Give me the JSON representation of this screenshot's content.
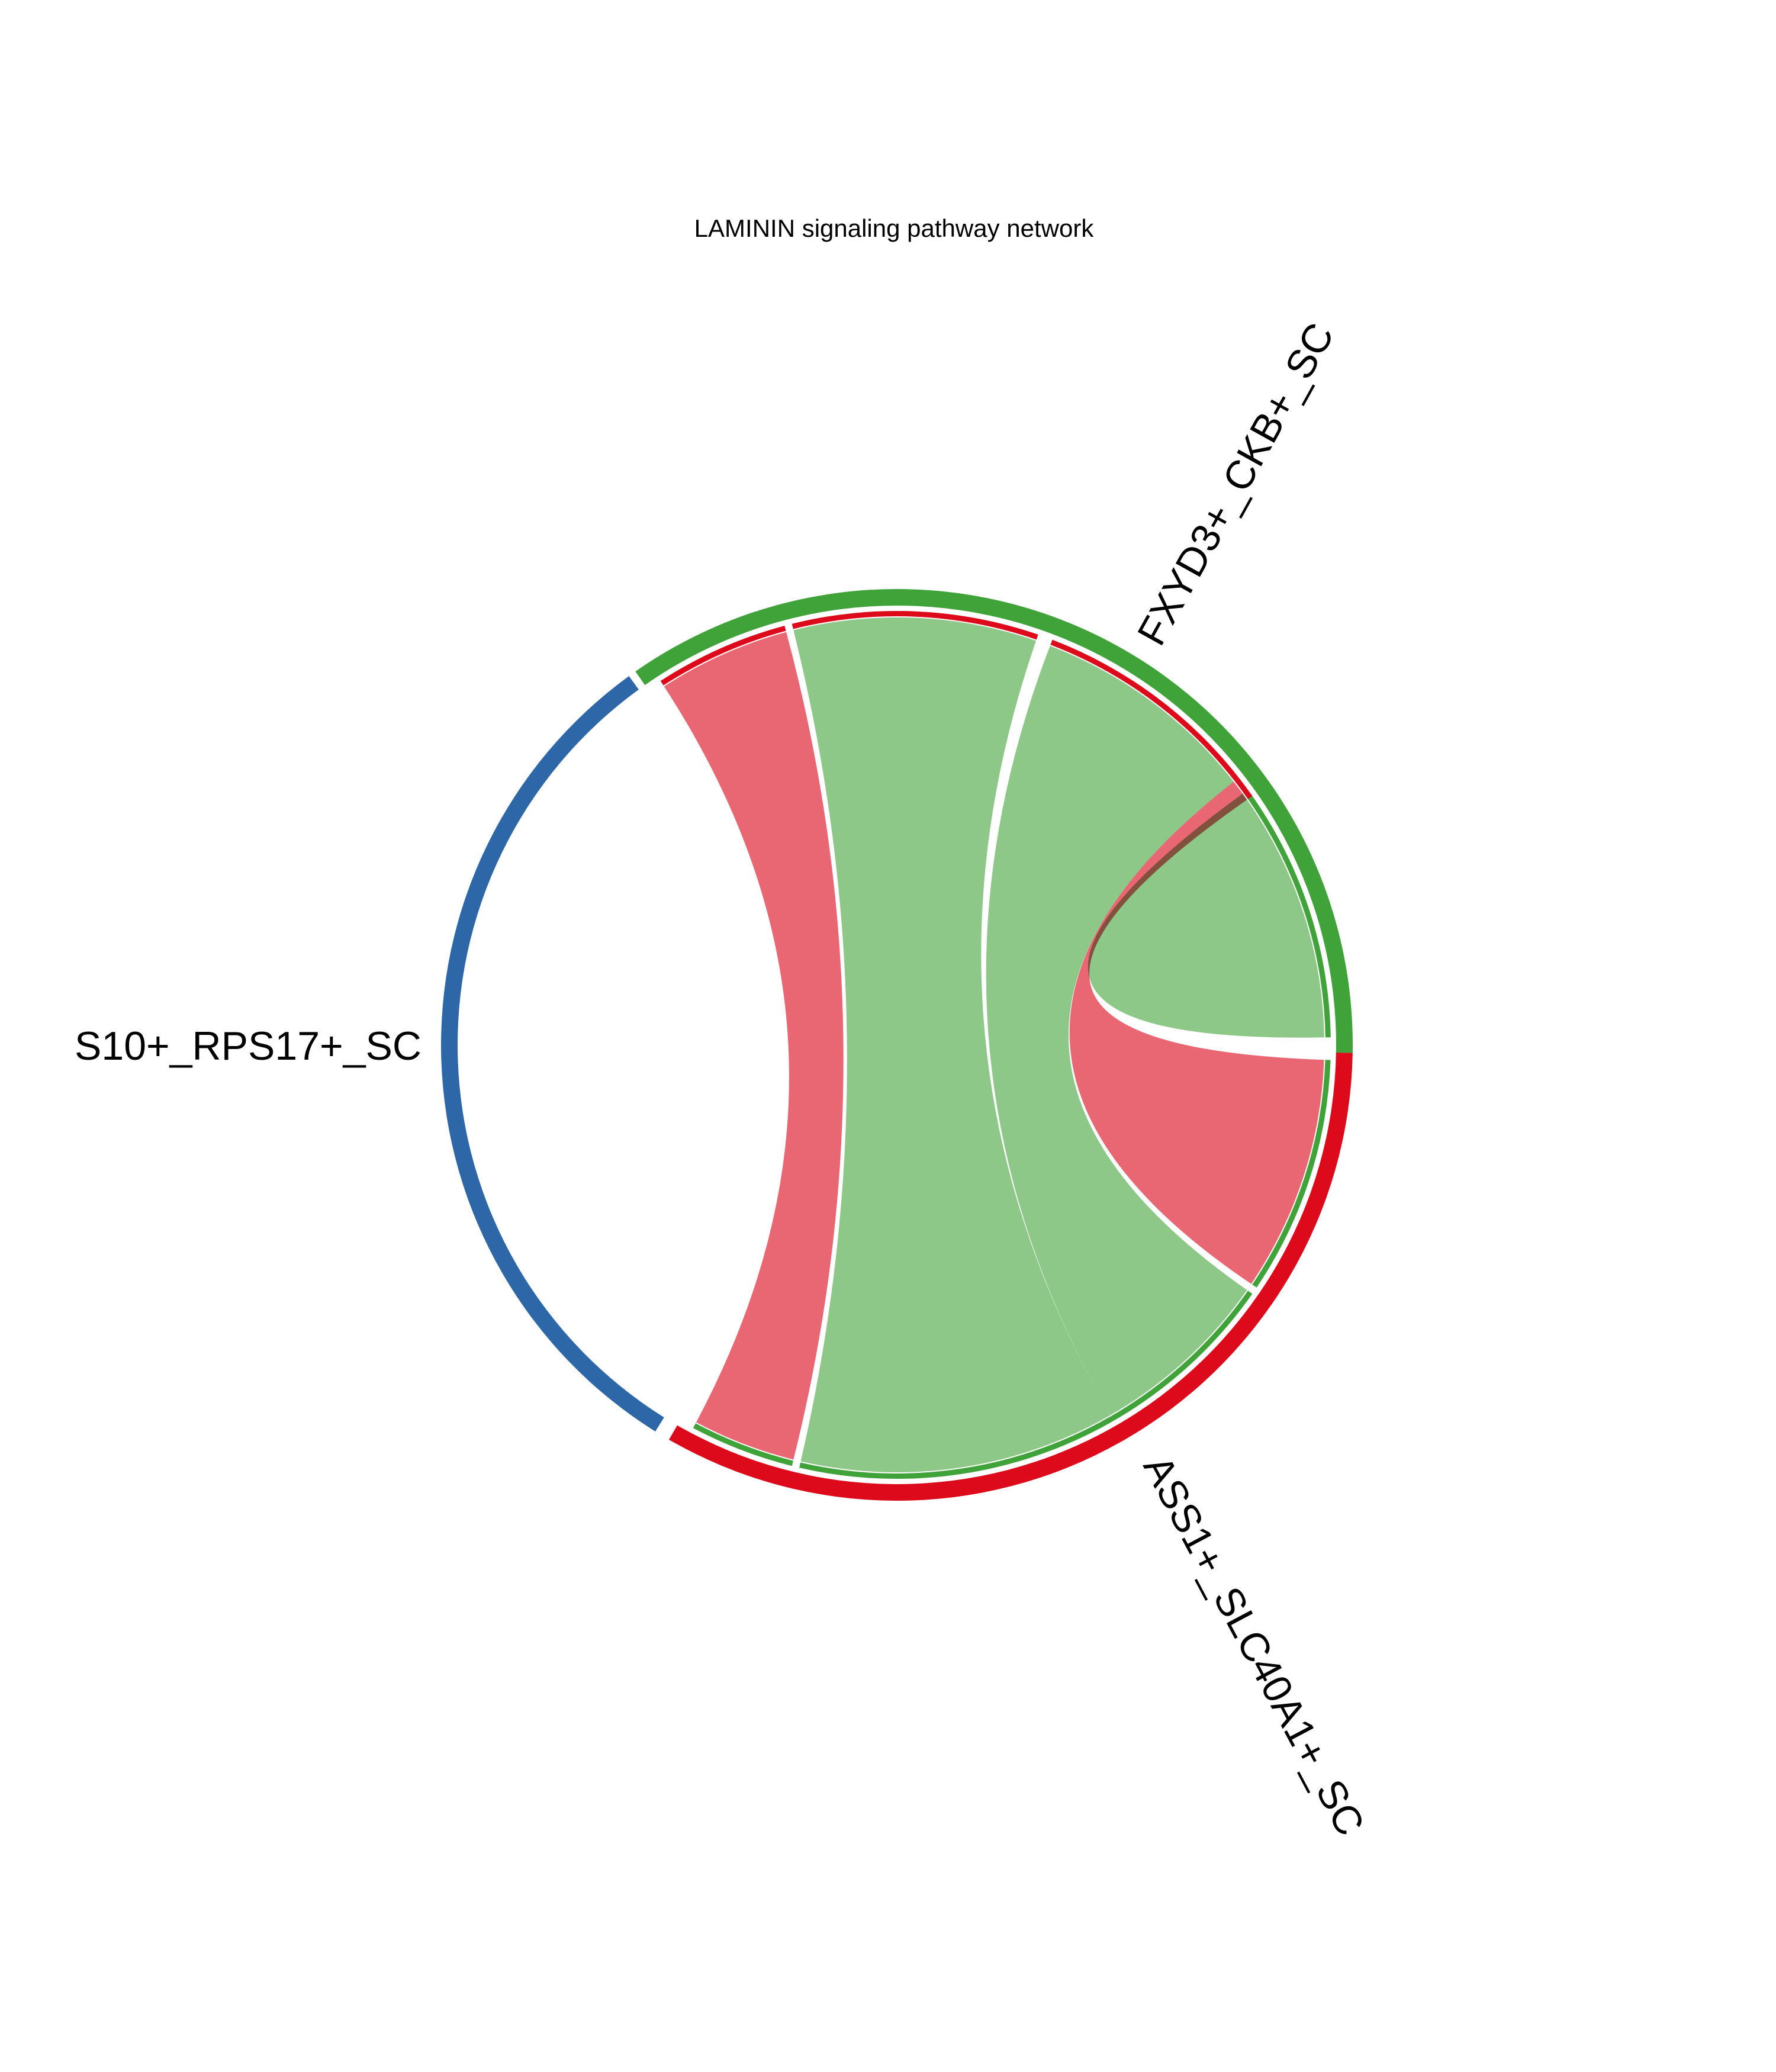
{
  "chart_data": {
    "type": "chord",
    "title": "LAMININ signaling pathway network",
    "nodes": [
      {
        "name": "S10+_RPS17+_SC",
        "color": "#2E67A8",
        "sector_degrees": [
          126,
          238
        ]
      },
      {
        "name": "FXYD3+_CKB+_SC",
        "color": "#3FA33A",
        "sector_degrees": [
          -1,
          125
        ]
      },
      {
        "name": "ASS1+_SLC40A1+_SC",
        "color": "#DC0A1A",
        "sector_degrees": [
          240,
          359
        ]
      }
    ],
    "links": [
      {
        "source": "FXYD3+_CKB+_SC",
        "target": "ASS1+_SLC40A1+_SC",
        "color": "#8EC888",
        "source_degrees": [
          71,
          104
        ],
        "target_degrees": [
          257,
          300
        ]
      },
      {
        "source": "FXYD3+_CKB+_SC",
        "target": "ASS1+_SLC40A1+_SC",
        "color": "#8EC888",
        "source_degrees": [
          38,
          69
        ],
        "target_degrees": [
          300,
          325
        ]
      },
      {
        "source": "FXYD3+_CKB+_SC",
        "target": "FXYD3+_CKB+_SC",
        "color": "#8EC888",
        "source_degrees": [
          1,
          26
        ],
        "target_degrees": [
          26,
          36
        ]
      },
      {
        "source": "ASS1+_SLC40A1+_SC",
        "target": "FXYD3+_CKB+_SC",
        "color": "#E96773",
        "source_degrees": [
          242,
          256
        ],
        "target_degrees": [
          105,
          123
        ]
      },
      {
        "source": "ASS1+_SLC40A1+_SC",
        "target": "FXYD3+_CKB+_SC",
        "color": "#E96773",
        "source_degrees": [
          326,
          358
        ],
        "target_degrees": [
          35,
          38
        ]
      }
    ]
  }
}
